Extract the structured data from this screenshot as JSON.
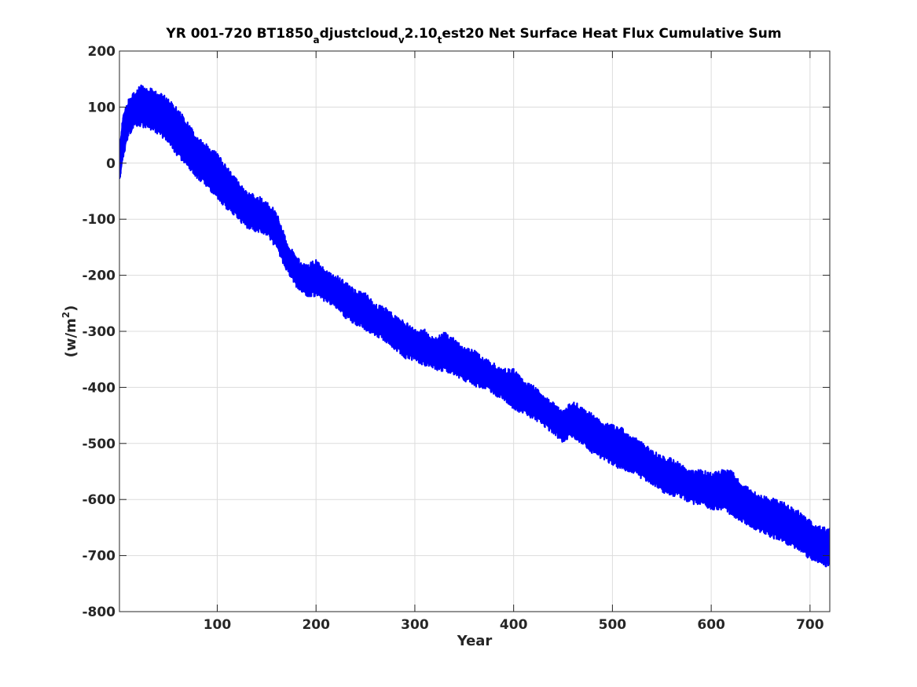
{
  "chart_data": {
    "type": "line",
    "title": {
      "parts": [
        {
          "text": "YR 001-720 BT1850",
          "sub": false
        },
        {
          "text": "a",
          "sub": true
        },
        {
          "text": "djustcloud",
          "sub": false
        },
        {
          "text": "v",
          "sub": true
        },
        {
          "text": "2.10",
          "sub": false
        },
        {
          "text": "t",
          "sub": true
        },
        {
          "text": "est20 Net Surface Heat Flux  Cumulative Sum",
          "sub": false
        }
      ]
    },
    "xlabel": "Year",
    "ylabel": {
      "prefix": "(w/m",
      "sup": "2",
      "suffix": ")"
    },
    "xlim": [
      1,
      720
    ],
    "ylim": [
      -800,
      200
    ],
    "xticks": [
      100,
      200,
      300,
      400,
      500,
      600,
      700
    ],
    "xtick_labels": [
      "100",
      "200",
      "300",
      "400",
      "500",
      "600",
      "700"
    ],
    "yticks": [
      200,
      100,
      0,
      -100,
      -200,
      -300,
      -400,
      -500,
      -600,
      -700,
      -800
    ],
    "ytick_labels": [
      "200",
      "100",
      "0",
      "-100",
      "-200",
      "-300",
      "-400",
      "-500",
      "-600",
      "-700",
      "-800"
    ],
    "grid": true,
    "colors": {
      "series": "#0000ff",
      "grid": "#dcdcdc",
      "axes": "#262626"
    },
    "series": [
      {
        "x": [
          1,
          3,
          5,
          10,
          15,
          20,
          25,
          30,
          40,
          50,
          60,
          70,
          80,
          90,
          100,
          110,
          120,
          130,
          140,
          150,
          160,
          170,
          180,
          190,
          200,
          210,
          220,
          230,
          240,
          250,
          260,
          270,
          280,
          290,
          300,
          310,
          320,
          330,
          340,
          350,
          360,
          370,
          380,
          390,
          400,
          410,
          420,
          430,
          440,
          450,
          460,
          470,
          480,
          490,
          500,
          510,
          520,
          530,
          540,
          550,
          560,
          570,
          580,
          590,
          600,
          610,
          620,
          630,
          640,
          650,
          660,
          670,
          680,
          690,
          700,
          710,
          720
        ],
        "upper": [
          30,
          50,
          85,
          105,
          118,
          128,
          132,
          128,
          118,
          110,
          90,
          65,
          38,
          25,
          10,
          -15,
          -35,
          -60,
          -65,
          -75,
          -95,
          -145,
          -175,
          -190,
          -180,
          -200,
          -205,
          -220,
          -235,
          -240,
          -260,
          -265,
          -280,
          -290,
          -305,
          -305,
          -320,
          -310,
          -320,
          -335,
          -340,
          -355,
          -365,
          -375,
          -375,
          -395,
          -405,
          -420,
          -435,
          -450,
          -430,
          -445,
          -455,
          -470,
          -475,
          -480,
          -495,
          -505,
          -520,
          -530,
          -535,
          -545,
          -555,
          -555,
          -560,
          -555,
          -555,
          -575,
          -590,
          -600,
          -605,
          -610,
          -620,
          -630,
          -645,
          -655,
          -660
        ],
        "lower": [
          -25,
          -5,
          20,
          55,
          70,
          75,
          72,
          70,
          60,
          45,
          20,
          0,
          -20,
          -35,
          -55,
          -75,
          -90,
          -110,
          -115,
          -120,
          -145,
          -185,
          -215,
          -230,
          -230,
          -240,
          -250,
          -270,
          -280,
          -290,
          -300,
          -310,
          -325,
          -340,
          -345,
          -355,
          -360,
          -365,
          -370,
          -380,
          -390,
          -395,
          -405,
          -415,
          -430,
          -440,
          -450,
          -460,
          -475,
          -490,
          -480,
          -495,
          -510,
          -520,
          -530,
          -540,
          -545,
          -555,
          -565,
          -580,
          -585,
          -590,
          -600,
          -600,
          -610,
          -610,
          -620,
          -630,
          -645,
          -650,
          -660,
          -665,
          -675,
          -685,
          -700,
          -705,
          -715
        ]
      }
    ]
  }
}
